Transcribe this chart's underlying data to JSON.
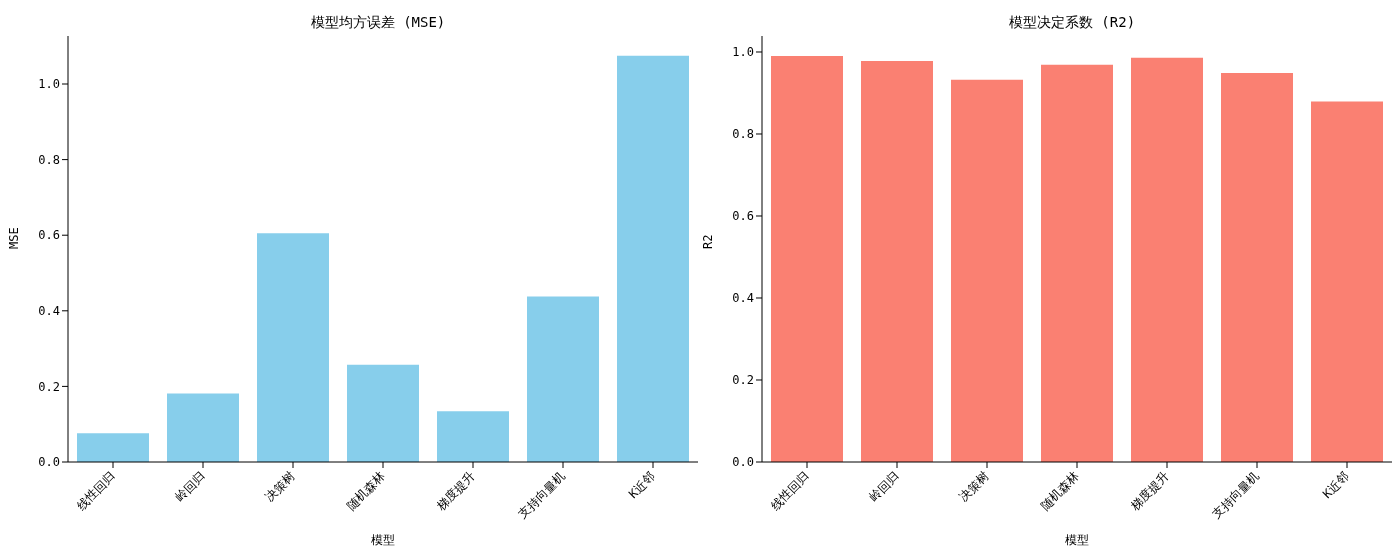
{
  "chart_data": [
    {
      "type": "bar",
      "title": "模型均方误差 (MSE)",
      "xlabel": "模型",
      "ylabel": "MSE",
      "categories": [
        "线性回归",
        "岭回归",
        "决策树",
        "随机森林",
        "梯度提升",
        "支持向量机",
        "K近邻"
      ],
      "values": [
        0.076,
        0.181,
        0.605,
        0.257,
        0.134,
        0.438,
        1.075
      ],
      "color": "#87ceeb",
      "ylim": [
        0,
        1.127
      ],
      "yticks": [
        {
          "value": 0,
          "label": "0.0"
        },
        {
          "value": 0.2,
          "label": "0.2"
        },
        {
          "value": 0.4,
          "label": "0.4"
        },
        {
          "value": 0.6,
          "label": "0.6"
        },
        {
          "value": 0.8,
          "label": "0.8"
        },
        {
          "value": 1,
          "label": "1.0"
        }
      ]
    },
    {
      "type": "bar",
      "title": "模型决定系数 (R2)",
      "xlabel": "模型",
      "ylabel": "R2",
      "categories": [
        "线性回归",
        "岭回归",
        "决策树",
        "随机森林",
        "梯度提升",
        "支持向量机",
        "K近邻"
      ],
      "values": [
        0.99,
        0.978,
        0.932,
        0.969,
        0.986,
        0.949,
        0.879
      ],
      "color": "#fa8072",
      "ylim": [
        0,
        1.039
      ],
      "yticks": [
        {
          "value": 0,
          "label": "0.0"
        },
        {
          "value": 0.2,
          "label": "0.2"
        },
        {
          "value": 0.4,
          "label": "0.4"
        },
        {
          "value": 0.6,
          "label": "0.6"
        },
        {
          "value": 0.8,
          "label": "0.8"
        },
        {
          "value": 1,
          "label": "1.0"
        }
      ]
    }
  ]
}
